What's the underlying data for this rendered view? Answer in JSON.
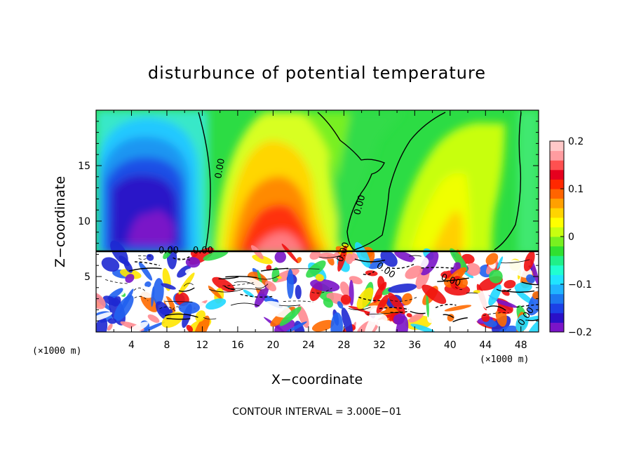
{
  "chart_data": {
    "type": "heatmap",
    "title": "disturbunce of potential temperature",
    "xlabel": "X−coordinate",
    "ylabel": "Z−coordinate",
    "x_unit_label": "(×1000 m)",
    "x_unit_label_right": "(×1000 m)",
    "xlim": [
      0,
      50
    ],
    "ylim": [
      0,
      20
    ],
    "x_ticks": [
      4,
      8,
      12,
      16,
      20,
      24,
      28,
      32,
      36,
      40,
      44,
      48
    ],
    "y_ticks": [
      5,
      10,
      15
    ],
    "colorbar": {
      "range": [
        -0.2,
        0.2
      ],
      "ticks": [
        "0.2",
        "0.1",
        "0",
        "−0.1",
        "−0.2"
      ],
      "tick_values": [
        0.2,
        0.1,
        0,
        -0.1,
        -0.2
      ],
      "colors": [
        "#7a14c8",
        "#2a10c8",
        "#1c40e6",
        "#1c78f0",
        "#20b4ff",
        "#20e4ff",
        "#20ffd0",
        "#20f088",
        "#30e030",
        "#78f020",
        "#c8ff10",
        "#ffff00",
        "#ffd400",
        "#ffa000",
        "#ff6400",
        "#ff2800",
        "#e6001e",
        "#ff5050",
        "#ff9ca0",
        "#ffc8c8"
      ]
    },
    "contour_labels": [
      "0.00",
      "0.00",
      "0.00",
      "0.00",
      "0.00",
      "0.00",
      "0.00",
      "0.00"
    ],
    "contour_interval_text": "CONTOUR INTERVAL = 3.000E−01",
    "features": {
      "cold_dome_center_x": 6,
      "cold_dome_top_z": 18,
      "warm_plume_center_x": 21,
      "warm_plume_top_z": 18,
      "inversion_z": 7.2,
      "turbulent_layer_top_z": 7.2
    }
  }
}
